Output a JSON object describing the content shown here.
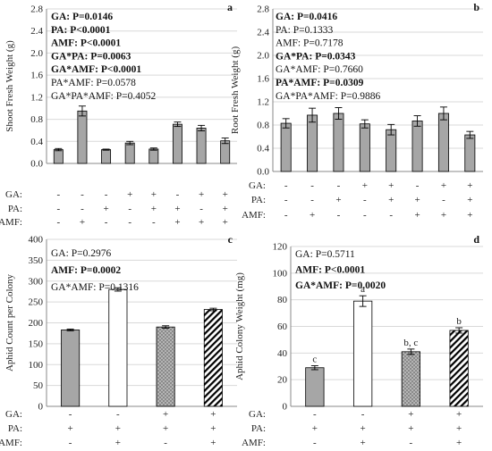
{
  "chart_data": [
    {
      "type": "bar",
      "panel": "a",
      "ylabel": "Shoot Fresh Weight (g)",
      "ylim": [
        0,
        2.8
      ],
      "yticks": [
        "0.0",
        "0.4",
        "0.8",
        "1.2",
        "1.6",
        "2.0",
        "2.4",
        "2.8"
      ],
      "values": [
        0.25,
        0.95,
        0.25,
        0.37,
        0.26,
        0.71,
        0.64,
        0.41
      ],
      "errors": [
        0.02,
        0.09,
        0.01,
        0.03,
        0.02,
        0.04,
        0.05,
        0.05
      ],
      "fills": [
        "gray",
        "gray",
        "gray",
        "gray",
        "gray",
        "gray",
        "gray",
        "gray"
      ],
      "factor_rows": [
        {
          "label": "GA:",
          "marks": [
            "-",
            "-",
            "-",
            "+",
            "+",
            "-",
            "+",
            "+"
          ]
        },
        {
          "label": "PA:",
          "marks": [
            "-",
            "-",
            "+",
            "-",
            "+",
            "+",
            "-",
            "+"
          ]
        },
        {
          "label": "AMF:",
          "marks": [
            "-",
            "+",
            "-",
            "-",
            "-",
            "+",
            "+",
            "+"
          ]
        }
      ],
      "stats": [
        {
          "name": "GA: ",
          "value": "P=0.0146",
          "bold": true
        },
        {
          "name": "PA: ",
          "value": "P<0.0001",
          "bold": true
        },
        {
          "name": "AMF: ",
          "value": "P<0.0001",
          "bold": true
        },
        {
          "name": "GA*PA: ",
          "value": "P=0.0063",
          "bold": true
        },
        {
          "name": "GA*AMF: ",
          "value": "P<0.0001",
          "bold": true
        },
        {
          "name": "PA*AMF: ",
          "value": "P=0.0578",
          "bold": false
        },
        {
          "name": "GA*PA*AMF: ",
          "value": "P=0.4052",
          "bold": false
        }
      ],
      "sig_letters": []
    },
    {
      "type": "bar",
      "panel": "b",
      "ylabel": "Root Fresh Weight (g)",
      "ylim": [
        0,
        2.8
      ],
      "yticks": [
        "0.0",
        "0.4",
        "0.8",
        "1.2",
        "1.6",
        "2.0",
        "2.4",
        "2.8"
      ],
      "values": [
        0.83,
        0.97,
        1.0,
        0.82,
        0.72,
        0.87,
        1.0,
        0.63
      ],
      "errors": [
        0.08,
        0.12,
        0.1,
        0.07,
        0.09,
        0.09,
        0.11,
        0.06
      ],
      "fills": [
        "gray",
        "gray",
        "gray",
        "gray",
        "gray",
        "gray",
        "gray",
        "gray"
      ],
      "factor_rows": [
        {
          "label": "GA:",
          "marks": [
            "-",
            "-",
            "-",
            "+",
            "+",
            "-",
            "+",
            "+"
          ]
        },
        {
          "label": "PA:",
          "marks": [
            "-",
            "-",
            "+",
            "-",
            "+",
            "+",
            "-",
            "+"
          ]
        },
        {
          "label": "AMF:",
          "marks": [
            "-",
            "+",
            "-",
            "-",
            "-",
            "+",
            "+",
            "+"
          ]
        }
      ],
      "stats": [
        {
          "name": "GA: ",
          "value": "P=0.0416",
          "bold": true
        },
        {
          "name": "PA: ",
          "value": "P=0.1333",
          "bold": false
        },
        {
          "name": "AMF: ",
          "value": "P=0.7178",
          "bold": false
        },
        {
          "name": "GA*PA: ",
          "value": "P=0.0343",
          "bold": true
        },
        {
          "name": "GA*AMF: ",
          "value": "P=0.7660",
          "bold": false
        },
        {
          "name": "PA*AMF: ",
          "value": "P=0.0309",
          "bold": true
        },
        {
          "name": "GA*PA*AMF: ",
          "value": "P=0.9886",
          "bold": false
        }
      ],
      "sig_letters": []
    },
    {
      "type": "bar",
      "panel": "c",
      "ylabel": "Aphid Count per Colony",
      "ylim": [
        0,
        400
      ],
      "yticks": [
        "0",
        "50",
        "100",
        "150",
        "200",
        "250",
        "300",
        "350",
        "400"
      ],
      "values": [
        183,
        280,
        190,
        232
      ],
      "errors": [
        2,
        4,
        3,
        3
      ],
      "fills": [
        "gray",
        "white",
        "dots",
        "hatch"
      ],
      "factor_rows": [
        {
          "label": "GA:",
          "marks": [
            "-",
            "-",
            "+",
            "+"
          ]
        },
        {
          "label": "PA:",
          "marks": [
            "+",
            "+",
            "+",
            "+"
          ]
        },
        {
          "label": "AMF:",
          "marks": [
            "-",
            "+",
            "-",
            "+"
          ]
        }
      ],
      "stats": [
        {
          "name": "GA: ",
          "value": "P=0.2976",
          "bold": false
        },
        {
          "name": "AMF: ",
          "value": "P=0.0002",
          "bold": true
        },
        {
          "name": "GA*AMF: ",
          "value": "P=0.1316",
          "bold": false
        }
      ],
      "sig_letters": []
    },
    {
      "type": "bar",
      "panel": "d",
      "ylabel": "Aphid Colony Weight (mg)",
      "ylim": [
        0,
        120
      ],
      "yticks": [
        "0",
        "20",
        "40",
        "60",
        "80",
        "100",
        "120"
      ],
      "values": [
        29,
        79,
        41,
        57
      ],
      "errors": [
        1.5,
        4,
        2,
        2
      ],
      "fills": [
        "gray",
        "white",
        "dots",
        "hatch"
      ],
      "factor_rows": [
        {
          "label": "GA:",
          "marks": [
            "-",
            "-",
            "+",
            "+"
          ]
        },
        {
          "label": "PA:",
          "marks": [
            "+",
            "+",
            "+",
            "+"
          ]
        },
        {
          "label": "AMF:",
          "marks": [
            "-",
            "+",
            "-",
            "+"
          ]
        }
      ],
      "stats": [
        {
          "name": "GA: ",
          "value": "P=0.5711",
          "bold": false
        },
        {
          "name": "AMF: ",
          "value": "P<0.0001",
          "bold": true
        },
        {
          "name": "GA*AMF: ",
          "value": "P=0.0020",
          "bold": true
        }
      ],
      "sig_letters": [
        "c",
        "a",
        "b, c",
        "b"
      ]
    }
  ]
}
